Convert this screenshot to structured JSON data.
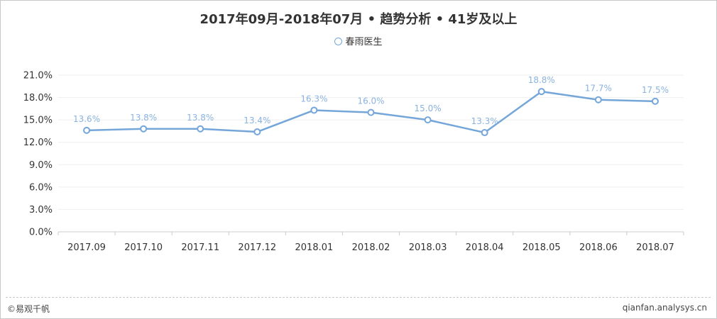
{
  "header": {
    "title": "2017年09月-2018年07月 • 趋势分析 • 41岁及以上"
  },
  "footer": {
    "brand": "©易观千帆",
    "site": "qianfan.analysys.cn"
  },
  "colors": {
    "series": "#74a6da",
    "label": "#8ab3e0",
    "grid": "#efefef",
    "axis": "#cccccc",
    "tick_text": "#333333"
  },
  "chart_data": {
    "type": "line",
    "title": "2017年09月-2018年07月 • 趋势分析 • 41岁及以上",
    "categories": [
      "2017.09",
      "2017.10",
      "2017.11",
      "2017.12",
      "2018.01",
      "2018.02",
      "2018.03",
      "2018.04",
      "2018.05",
      "2018.06",
      "2018.07"
    ],
    "series": [
      {
        "name": "春雨医生",
        "values": [
          13.6,
          13.8,
          13.8,
          13.4,
          16.3,
          16.0,
          15.0,
          13.3,
          18.8,
          17.7,
          17.5
        ]
      }
    ],
    "data_labels": [
      "13.6%",
      "13.8%",
      "13.8%",
      "13.4%",
      "16.3%",
      "16.0%",
      "15.0%",
      "13.3%",
      "18.8%",
      "17.7%",
      "17.5%"
    ],
    "y_ticks": [
      "0.0%",
      "3.0%",
      "6.0%",
      "9.0%",
      "12.0%",
      "15.0%",
      "18.0%",
      "21.0%"
    ],
    "ylim": [
      0,
      21
    ],
    "grid": true,
    "legend_position": "top-center",
    "xlabel": "",
    "ylabel": ""
  }
}
